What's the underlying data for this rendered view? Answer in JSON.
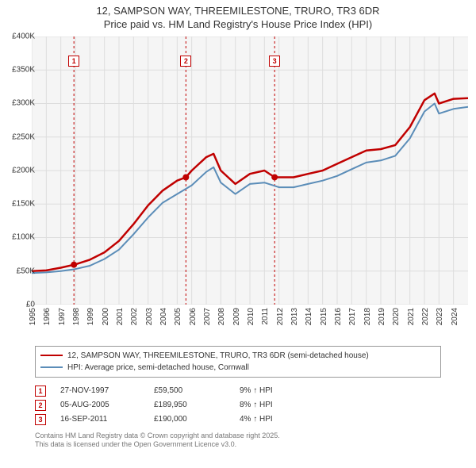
{
  "title": {
    "line1": "12, SAMPSON WAY, THREEMILESTONE, TRURO, TR3 6DR",
    "line2": "Price paid vs. HM Land Registry's House Price Index (HPI)"
  },
  "chart": {
    "type": "line",
    "background_color": "#f5f5f5",
    "grid_color": "#dddddd",
    "xlim": [
      1995,
      2025
    ],
    "ylim": [
      0,
      400000
    ],
    "ytick_step": 50000,
    "yticks": [
      0,
      50000,
      100000,
      150000,
      200000,
      250000,
      300000,
      350000,
      400000
    ],
    "ytick_labels": [
      "£0",
      "£50K",
      "£100K",
      "£150K",
      "£200K",
      "£250K",
      "£300K",
      "£350K",
      "£400K"
    ],
    "xticks": [
      1995,
      1996,
      1997,
      1998,
      1999,
      2000,
      2001,
      2002,
      2003,
      2004,
      2005,
      2006,
      2007,
      2008,
      2009,
      2010,
      2011,
      2012,
      2013,
      2014,
      2015,
      2016,
      2017,
      2018,
      2019,
      2020,
      2021,
      2022,
      2023,
      2024
    ],
    "xtick_labels": [
      "1995",
      "1996",
      "1997",
      "1998",
      "1999",
      "2000",
      "2001",
      "2002",
      "2003",
      "2004",
      "2005",
      "2006",
      "2007",
      "2008",
      "2009",
      "2010",
      "2011",
      "2012",
      "2013",
      "2014",
      "2015",
      "2016",
      "2017",
      "2018",
      "2019",
      "2020",
      "2021",
      "2022",
      "2023",
      "2024"
    ],
    "label_fontsize": 10,
    "series": [
      {
        "name": "price_paid",
        "label": "12, SAMPSON WAY, THREEMILESTONE, TRURO, TR3 6DR (semi-detached house)",
        "color": "#c00000",
        "line_width": 2.5,
        "x": [
          1995,
          1996,
          1997,
          1998,
          1999,
          2000,
          2001,
          2002,
          2003,
          2004,
          2005,
          2005.6,
          2006,
          2007,
          2007.5,
          2008,
          2009,
          2010,
          2011,
          2011.7,
          2012,
          2013,
          2014,
          2015,
          2016,
          2017,
          2018,
          2019,
          2020,
          2021,
          2022,
          2022.7,
          2023,
          2024,
          2025
        ],
        "y": [
          50000,
          51000,
          55000,
          60000,
          67000,
          78000,
          95000,
          120000,
          148000,
          170000,
          185000,
          190000,
          200000,
          220000,
          225000,
          200000,
          180000,
          195000,
          200000,
          190000,
          190000,
          190000,
          195000,
          200000,
          210000,
          220000,
          230000,
          232000,
          238000,
          265000,
          305000,
          315000,
          300000,
          307000,
          308000
        ]
      },
      {
        "name": "hpi",
        "label": "HPI: Average price, semi-detached house, Cornwall",
        "color": "#5b8db8",
        "line_width": 2,
        "x": [
          1995,
          1996,
          1997,
          1998,
          1999,
          2000,
          2001,
          2002,
          2003,
          2004,
          2005,
          2006,
          2007,
          2007.5,
          2008,
          2009,
          2010,
          2011,
          2012,
          2013,
          2014,
          2015,
          2016,
          2017,
          2018,
          2019,
          2020,
          2021,
          2022,
          2022.7,
          2023,
          2024,
          2025
        ],
        "y": [
          47000,
          48000,
          50000,
          53000,
          58000,
          68000,
          82000,
          105000,
          130000,
          152000,
          165000,
          178000,
          198000,
          205000,
          182000,
          165000,
          180000,
          182000,
          175000,
          175000,
          180000,
          185000,
          192000,
          202000,
          212000,
          215000,
          222000,
          248000,
          288000,
          300000,
          285000,
          292000,
          295000
        ]
      }
    ],
    "event_lines": {
      "color": "#c00000",
      "dash": "3,3",
      "width": 1
    },
    "events": [
      {
        "n": "1",
        "x_year": 1997.9,
        "dot_y": 59500
      },
      {
        "n": "2",
        "x_year": 2005.6,
        "dot_y": 189950
      },
      {
        "n": "3",
        "x_year": 2011.7,
        "dot_y": 190000
      }
    ],
    "event_dot": {
      "color": "#c00000",
      "radius": 4
    }
  },
  "legend": {
    "border_color": "#999999",
    "items": [
      {
        "color": "#c00000",
        "label": "12, SAMPSON WAY, THREEMILESTONE, TRURO, TR3 6DR (semi-detached house)"
      },
      {
        "color": "#5b8db8",
        "label": "HPI: Average price, semi-detached house, Cornwall"
      }
    ]
  },
  "transactions": [
    {
      "n": "1",
      "date": "27-NOV-1997",
      "price": "£59,500",
      "hpi": "9% ↑ HPI"
    },
    {
      "n": "2",
      "date": "05-AUG-2005",
      "price": "£189,950",
      "hpi": "8% ↑ HPI"
    },
    {
      "n": "3",
      "date": "16-SEP-2011",
      "price": "£190,000",
      "hpi": "4% ↑ HPI"
    }
  ],
  "footnote": {
    "line1": "Contains HM Land Registry data © Crown copyright and database right 2025.",
    "line2": "This data is licensed under the Open Government Licence v3.0."
  }
}
